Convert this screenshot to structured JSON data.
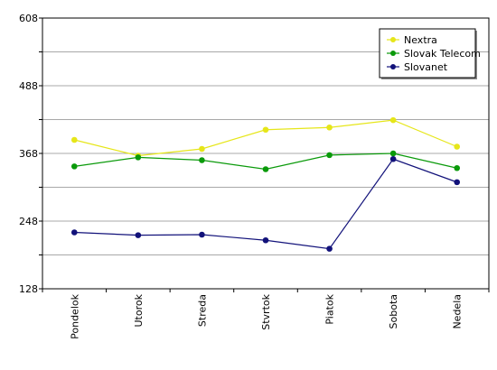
{
  "chart_data": {
    "type": "line",
    "categories": [
      "Pondelok",
      "Utorok",
      "Streda",
      "Stvrtok",
      "Piatok",
      "Sobota",
      "Nedela"
    ],
    "series": [
      {
        "name": "Nextra",
        "color": "#e6e619",
        "values": [
          392,
          364,
          376,
          410,
          414,
          427,
          380
        ]
      },
      {
        "name": "Slovak Telecom",
        "color": "#0a9a0a",
        "values": [
          345,
          361,
          356,
          340,
          365,
          368,
          342
        ]
      },
      {
        "name": "Slovanet",
        "color": "#12127a",
        "values": [
          228,
          223,
          224,
          214,
          199,
          358,
          317
        ]
      }
    ],
    "yticks": [
      128,
      248,
      368,
      488,
      608
    ],
    "ylim": [
      128,
      608
    ],
    "grid": true,
    "legend": "top-right",
    "title": "",
    "xlabel": "",
    "ylabel": ""
  }
}
